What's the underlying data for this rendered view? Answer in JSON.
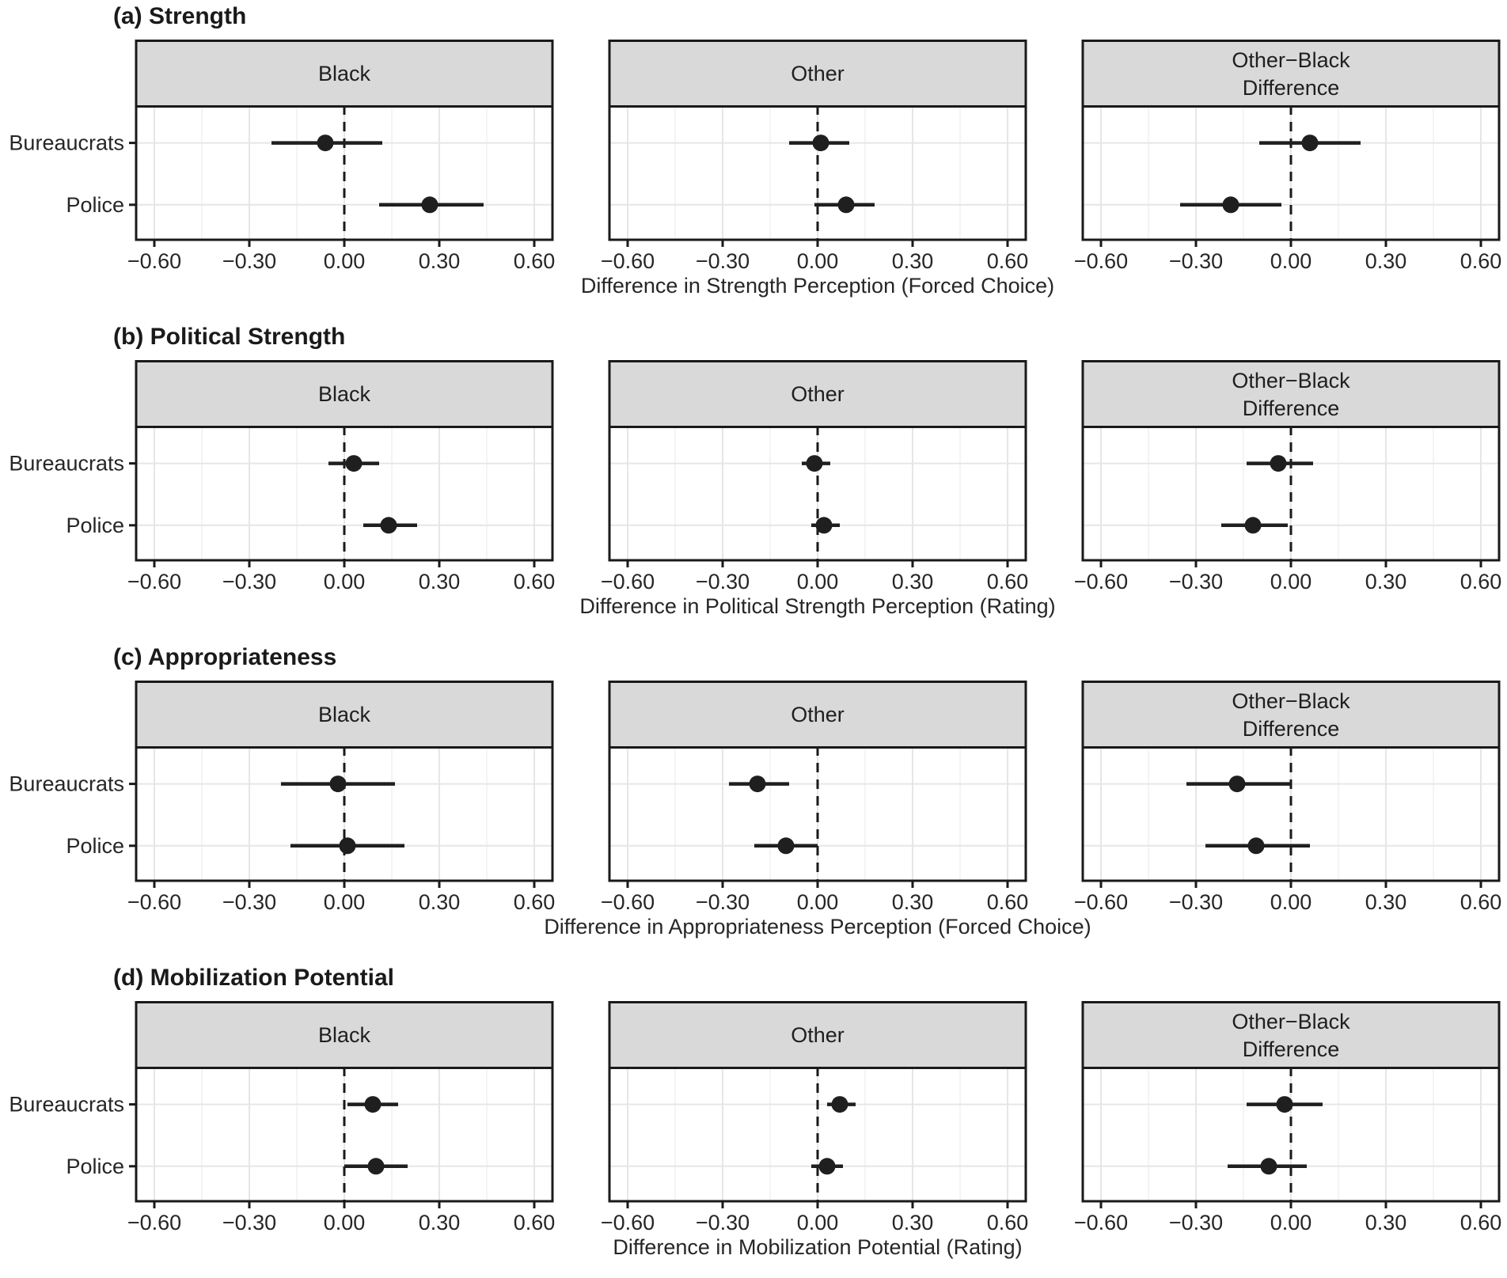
{
  "figure": {
    "background": "#ffffff",
    "text_color": "#262626",
    "line_color": "#1a1a1a",
    "strip_fill": "#d9d9d9",
    "grid_major_color": "#e6e6e6",
    "grid_minor_color": "#efefef",
    "point_color": "#1f1f1f"
  },
  "categories": [
    "Bureaucrats",
    "Police"
  ],
  "axis": {
    "range_min": -0.6575,
    "range_max": 0.6575,
    "ticks": [
      -0.6,
      -0.3,
      0,
      0.3,
      0.6
    ],
    "tick_labels": [
      "−0.60",
      "−0.30",
      "0.00",
      "0.30",
      "0.60"
    ],
    "minor_step": 0.15,
    "zero_reference_line": 0
  },
  "chart_data": [
    {
      "type": "scatter",
      "title": "(a) Strength",
      "xlabel": "Difference in Strength Perception (Forced Choice)",
      "facets": [
        {
          "label_lines": [
            "Black"
          ],
          "points": [
            {
              "category": "Bureaucrats",
              "estimate": -0.06,
              "ci_low": -0.23,
              "ci_high": 0.12
            },
            {
              "category": "Police",
              "estimate": 0.27,
              "ci_low": 0.11,
              "ci_high": 0.44
            }
          ]
        },
        {
          "label_lines": [
            "Other"
          ],
          "points": [
            {
              "category": "Bureaucrats",
              "estimate": 0.01,
              "ci_low": -0.09,
              "ci_high": 0.1
            },
            {
              "category": "Police",
              "estimate": 0.09,
              "ci_low": -0.01,
              "ci_high": 0.18
            }
          ]
        },
        {
          "label_lines": [
            "Other−Black",
            "Difference"
          ],
          "points": [
            {
              "category": "Bureaucrats",
              "estimate": 0.06,
              "ci_low": -0.1,
              "ci_high": 0.22
            },
            {
              "category": "Police",
              "estimate": -0.19,
              "ci_low": -0.35,
              "ci_high": -0.03
            }
          ]
        }
      ]
    },
    {
      "type": "scatter",
      "title": "(b) Political Strength",
      "xlabel": "Difference in Political Strength Perception (Rating)",
      "facets": [
        {
          "label_lines": [
            "Black"
          ],
          "points": [
            {
              "category": "Bureaucrats",
              "estimate": 0.03,
              "ci_low": -0.05,
              "ci_high": 0.11
            },
            {
              "category": "Police",
              "estimate": 0.14,
              "ci_low": 0.06,
              "ci_high": 0.23
            }
          ]
        },
        {
          "label_lines": [
            "Other"
          ],
          "points": [
            {
              "category": "Bureaucrats",
              "estimate": -0.01,
              "ci_low": -0.05,
              "ci_high": 0.04
            },
            {
              "category": "Police",
              "estimate": 0.02,
              "ci_low": -0.02,
              "ci_high": 0.07
            }
          ]
        },
        {
          "label_lines": [
            "Other−Black",
            "Difference"
          ],
          "points": [
            {
              "category": "Bureaucrats",
              "estimate": -0.04,
              "ci_low": -0.14,
              "ci_high": 0.07
            },
            {
              "category": "Police",
              "estimate": -0.12,
              "ci_low": -0.22,
              "ci_high": -0.01
            }
          ]
        }
      ]
    },
    {
      "type": "scatter",
      "title": "(c) Appropriateness",
      "xlabel": "Difference in Appropriateness Perception (Forced Choice)",
      "facets": [
        {
          "label_lines": [
            "Black"
          ],
          "points": [
            {
              "category": "Bureaucrats",
              "estimate": -0.02,
              "ci_low": -0.2,
              "ci_high": 0.16
            },
            {
              "category": "Police",
              "estimate": 0.01,
              "ci_low": -0.17,
              "ci_high": 0.19
            }
          ]
        },
        {
          "label_lines": [
            "Other"
          ],
          "points": [
            {
              "category": "Bureaucrats",
              "estimate": -0.19,
              "ci_low": -0.28,
              "ci_high": -0.09
            },
            {
              "category": "Police",
              "estimate": -0.1,
              "ci_low": -0.2,
              "ci_high": 0.0
            }
          ]
        },
        {
          "label_lines": [
            "Other−Black",
            "Difference"
          ],
          "points": [
            {
              "category": "Bureaucrats",
              "estimate": -0.17,
              "ci_low": -0.33,
              "ci_high": 0.0
            },
            {
              "category": "Police",
              "estimate": -0.11,
              "ci_low": -0.27,
              "ci_high": 0.06
            }
          ]
        }
      ]
    },
    {
      "type": "scatter",
      "title": "(d) Mobilization Potential",
      "xlabel": "Difference in Mobilization Potential (Rating)",
      "facets": [
        {
          "label_lines": [
            "Black"
          ],
          "points": [
            {
              "category": "Bureaucrats",
              "estimate": 0.09,
              "ci_low": 0.01,
              "ci_high": 0.17
            },
            {
              "category": "Police",
              "estimate": 0.1,
              "ci_low": 0.0,
              "ci_high": 0.2
            }
          ]
        },
        {
          "label_lines": [
            "Other"
          ],
          "points": [
            {
              "category": "Bureaucrats",
              "estimate": 0.07,
              "ci_low": 0.03,
              "ci_high": 0.12
            },
            {
              "category": "Police",
              "estimate": 0.03,
              "ci_low": -0.02,
              "ci_high": 0.08
            }
          ]
        },
        {
          "label_lines": [
            "Other−Black",
            "Difference"
          ],
          "points": [
            {
              "category": "Bureaucrats",
              "estimate": -0.02,
              "ci_low": -0.14,
              "ci_high": 0.1
            },
            {
              "category": "Police",
              "estimate": -0.07,
              "ci_low": -0.2,
              "ci_high": 0.05
            }
          ]
        }
      ]
    }
  ]
}
